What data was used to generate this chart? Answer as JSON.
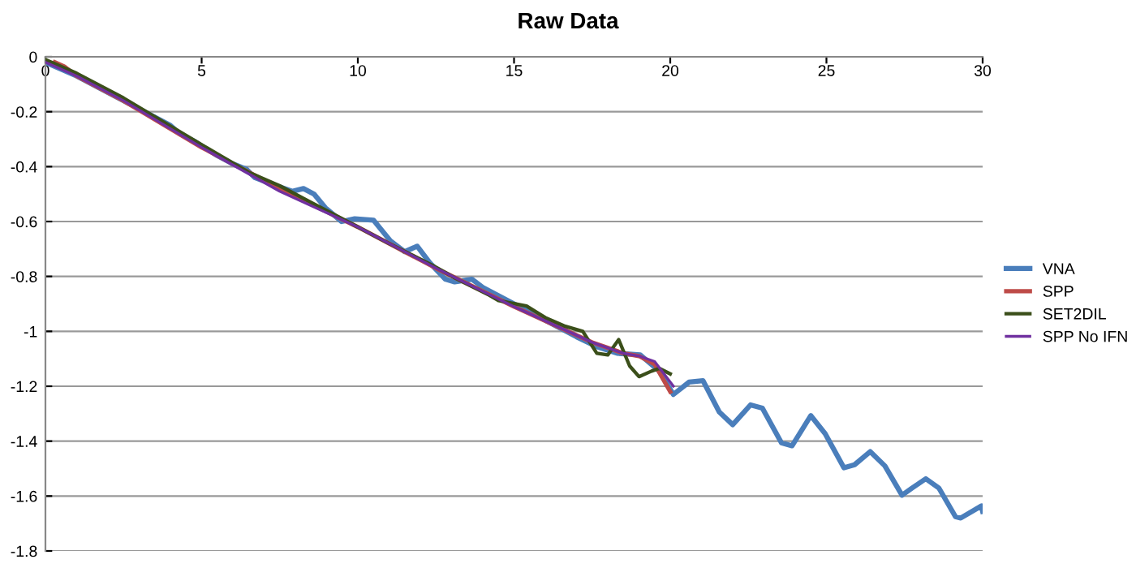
{
  "chart_data": {
    "type": "line",
    "title": "Raw Data",
    "xlim": [
      0,
      30
    ],
    "xticks": [
      0,
      5,
      10,
      15,
      20,
      25,
      30
    ],
    "ylim": [
      -1.8,
      0
    ],
    "yticks": [
      0,
      -0.2,
      -0.4,
      -0.6,
      -0.8,
      -1,
      -1.2,
      -1.4,
      -1.6,
      -1.8
    ],
    "grid": "y",
    "legend": "right",
    "series": [
      {
        "name": "VNA",
        "color": "#4a7ebb",
        "x": [
          0,
          1,
          2,
          3,
          4,
          4.3,
          4.8,
          5.5,
          6.0,
          6.44,
          6.7,
          7.4,
          7.9,
          8.26,
          8.6,
          8.96,
          9.48,
          9.9,
          10.5,
          11.04,
          11.5,
          11.9,
          12.3,
          12.8,
          13.1,
          13.65,
          14.0,
          15,
          16,
          17,
          17.65,
          18.3,
          19.04,
          19.65,
          20.1,
          20.6,
          21.05,
          21.57,
          22.0,
          22.57,
          22.95,
          23.56,
          23.9,
          24.5,
          24.96,
          25.56,
          25.9,
          26.4,
          26.87,
          27.42,
          27.74,
          28.18,
          28.6,
          29.13,
          29.3,
          29.96,
          30
        ],
        "values": [
          -0.02,
          -0.07,
          -0.13,
          -0.19,
          -0.25,
          -0.28,
          -0.31,
          -0.36,
          -0.39,
          -0.41,
          -0.44,
          -0.47,
          -0.49,
          -0.48,
          -0.5,
          -0.55,
          -0.6,
          -0.59,
          -0.595,
          -0.67,
          -0.71,
          -0.69,
          -0.75,
          -0.81,
          -0.82,
          -0.81,
          -0.84,
          -0.9,
          -0.96,
          -1.02,
          -1.056,
          -1.08,
          -1.086,
          -1.145,
          -1.23,
          -1.185,
          -1.18,
          -1.294,
          -1.34,
          -1.268,
          -1.28,
          -1.406,
          -1.417,
          -1.307,
          -1.373,
          -1.497,
          -1.486,
          -1.438,
          -1.49,
          -1.597,
          -1.571,
          -1.537,
          -1.571,
          -1.675,
          -1.68,
          -1.636,
          -1.656
        ]
      },
      {
        "name": "SPP",
        "color": "#be4b48",
        "x": [
          0.3,
          0.6,
          1,
          2.5,
          5,
          7.5,
          10,
          12.5,
          15,
          17.5,
          18.5,
          19,
          19.5,
          20.0
        ],
        "values": [
          -0.02,
          -0.035,
          -0.07,
          -0.16,
          -0.33,
          -0.48,
          -0.62,
          -0.77,
          -0.91,
          -1.04,
          -1.08,
          -1.09,
          -1.12,
          -1.22
        ]
      },
      {
        "name": "SET2DIL",
        "color": "#3b4f1a",
        "x": [
          0,
          1,
          2.5,
          5,
          6.5,
          7.5,
          8.5,
          10,
          11,
          12.4,
          13.1,
          14.2,
          14.5,
          15.4,
          16.0,
          16.6,
          17.2,
          17.65,
          18.0,
          18.35,
          18.7,
          19.0,
          19.4,
          19.65,
          20.0
        ],
        "values": [
          -0.01,
          -0.06,
          -0.15,
          -0.32,
          -0.42,
          -0.47,
          -0.53,
          -0.62,
          -0.68,
          -0.76,
          -0.805,
          -0.868,
          -0.888,
          -0.908,
          -0.95,
          -0.98,
          -1.0,
          -1.08,
          -1.086,
          -1.03,
          -1.126,
          -1.165,
          -1.145,
          -1.135,
          -1.155
        ]
      },
      {
        "name": "SPP No IFN",
        "color": "#7030a0",
        "x": [
          0,
          1,
          2.5,
          5,
          7.5,
          10,
          12.5,
          15,
          17.5,
          18.5,
          19,
          19.5,
          20.1
        ],
        "values": [
          -0.02,
          -0.07,
          -0.16,
          -0.33,
          -0.49,
          -0.62,
          -0.77,
          -0.91,
          -1.04,
          -1.08,
          -1.09,
          -1.11,
          -1.2
        ]
      }
    ]
  }
}
